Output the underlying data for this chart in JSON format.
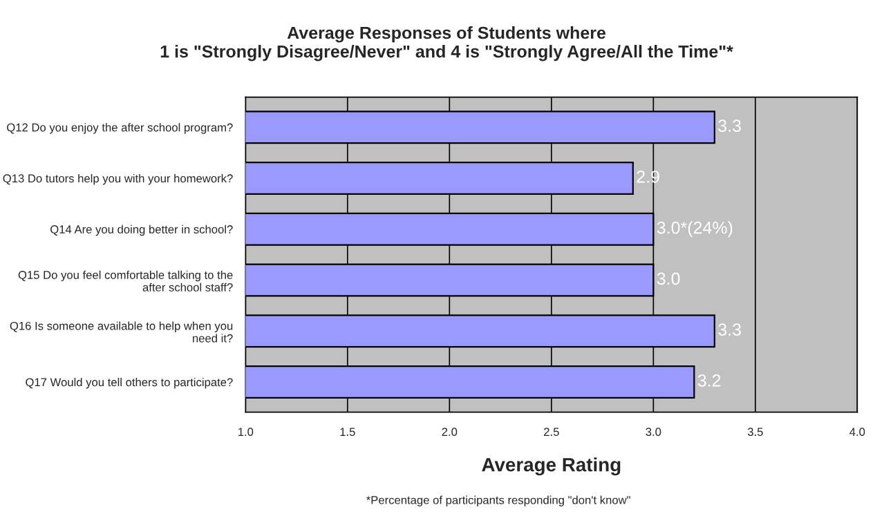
{
  "chart_data": {
    "type": "bar",
    "orientation": "horizontal",
    "title": "Average Responses of Students where\n1 is \"Strongly Disagree/Never\" and 4 is \"Strongly Agree/All the Time\"*",
    "xlabel": "Average Rating",
    "categories": [
      "Q12 Do you enjoy the after school program?",
      "Q13 Do tutors help you with your homework?",
      "Q14 Are you doing better in school?",
      "Q15 Do you feel comfortable talking to the\nafter school staff?",
      "Q16 Is someone available to help when you\nneed it?",
      "Q17 Would you tell others to participate?"
    ],
    "values": [
      3.3,
      2.9,
      3.0,
      3.0,
      3.3,
      3.2
    ],
    "value_labels": [
      "3.3",
      "2.9",
      "3.0*(24%)",
      "3.0",
      "3.3",
      "3.2"
    ],
    "color": "#9999ff",
    "xlim": [
      1.0,
      4.0
    ],
    "xticks": [
      {
        "value": 1.0,
        "label": "1.0"
      },
      {
        "value": 1.5,
        "label": "1.5"
      },
      {
        "value": 2.0,
        "label": "2.0"
      },
      {
        "value": 2.5,
        "label": "2.5"
      },
      {
        "value": 3.0,
        "label": "3.0"
      },
      {
        "value": 3.5,
        "label": "3.5"
      },
      {
        "value": 4.0,
        "label": "4.0"
      }
    ],
    "grid": "x",
    "legend": false,
    "annotations": [
      "*Percentage of participants responding \"don't know\""
    ]
  }
}
